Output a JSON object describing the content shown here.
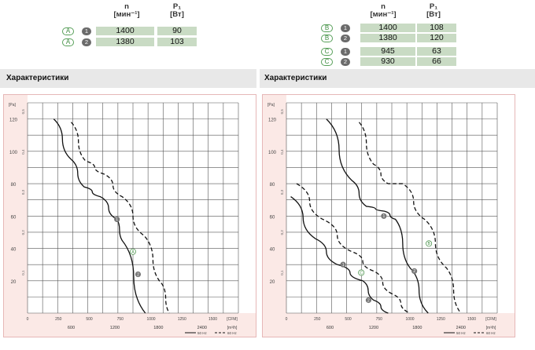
{
  "left_table": {
    "col_n": [
      "n",
      "[мин⁻¹]"
    ],
    "col_p": [
      "P₁",
      "[Вт]"
    ],
    "rows": [
      {
        "curve": "A",
        "point": "1",
        "n": "1400",
        "p": "90"
      },
      {
        "curve": "A",
        "point": "2",
        "n": "1380",
        "p": "103"
      }
    ]
  },
  "right_table": {
    "col_n": [
      "n",
      "[мин⁻¹]"
    ],
    "col_p": [
      "P₁",
      "[Вт]"
    ],
    "rows": [
      {
        "curve": "B",
        "point": "1",
        "n": "1400",
        "p": "108"
      },
      {
        "curve": "B",
        "point": "2",
        "n": "1380",
        "p": "120"
      },
      {
        "curve": "C",
        "point": "1",
        "n": "945",
        "p": "63"
      },
      {
        "curve": "C",
        "point": "2",
        "n": "930",
        "p": "66"
      }
    ]
  },
  "sections": {
    "left_title": "Характеристики",
    "right_title": "Характеристики"
  },
  "colors": {
    "curve": "#111111",
    "grid": "#555555",
    "marker": "#777777",
    "label_green": "#3c8a3e",
    "band": "#e8e8e8",
    "cell": "#c9dbc4"
  },
  "chart_data": [
    {
      "type": "line",
      "title": "",
      "ylabel": "[Pa]",
      "xlabel": "[m³/h]",
      "ylim": [
        0,
        130
      ],
      "xlim": [
        0,
        2900
      ],
      "y_ticks": [
        "20",
        "40",
        "60",
        "80",
        "100",
        "120"
      ],
      "y2_ticks": [
        "0,1",
        "0,2",
        "0,3",
        "0,4",
        "0,5"
      ],
      "x_ticks_top": [
        "0",
        "250",
        "500",
        "750",
        "1000",
        "1250",
        "1500"
      ],
      "x_unit_top": "[CFM]",
      "x_ticks_bottom": [
        "600",
        "1200",
        "1800",
        "2400"
      ],
      "x_unit_bottom": "[m³/h]",
      "legend": [
        "50 Hz",
        "60 Hz"
      ],
      "series": [
        {
          "name": "50 Hz",
          "style": "solid",
          "x": [
            360,
            600,
            780,
            1000,
            1230,
            1300,
            1620
          ],
          "y": [
            120,
            95,
            78,
            72,
            58,
            45,
            0
          ]
        },
        {
          "name": "60 Hz",
          "style": "dashed",
          "x": [
            600,
            800,
            1050,
            1300,
            1600,
            1850,
            1950
          ],
          "y": [
            118,
            94,
            86,
            72,
            48,
            18,
            0
          ]
        }
      ],
      "markers": [
        {
          "label": "1",
          "x": 1230,
          "y": 58
        },
        {
          "label": "2",
          "x": 1520,
          "y": 24
        }
      ],
      "curve_labels": [
        {
          "label": "A",
          "x": 1450,
          "y": 38
        }
      ]
    },
    {
      "type": "line",
      "title": "",
      "ylabel": "[Pa]",
      "xlabel": "[m³/h]",
      "ylim": [
        0,
        130
      ],
      "xlim": [
        0,
        2900
      ],
      "y_ticks": [
        "20",
        "40",
        "60",
        "80",
        "100",
        "120"
      ],
      "y2_ticks": [
        "0,1",
        "0,2",
        "0,3",
        "0,4",
        "0,5"
      ],
      "x_ticks_top": [
        "0",
        "250",
        "500",
        "750",
        "1000",
        "1250",
        "1500"
      ],
      "x_unit_top": "[CFM]",
      "x_ticks_bottom": [
        "600",
        "1200",
        "1800",
        "2400"
      ],
      "x_unit_bottom": "[m³/h]",
      "legend": [
        "50 Hz",
        "60 Hz"
      ],
      "series": [
        {
          "name": "B 50 Hz",
          "style": "solid",
          "x": [
            550,
            900,
            1100,
            1350,
            1500,
            1700,
            1950
          ],
          "y": [
            120,
            82,
            66,
            63,
            58,
            28,
            0
          ]
        },
        {
          "name": "B 60 Hz",
          "style": "dashed",
          "x": [
            1000,
            1200,
            1400,
            1600,
            1900,
            2200,
            2400
          ],
          "y": [
            118,
            92,
            80,
            80,
            58,
            28,
            0
          ]
        },
        {
          "name": "C 50 Hz",
          "style": "solid",
          "x": [
            60,
            400,
            700,
            1050,
            1200,
            1400
          ],
          "y": [
            72,
            46,
            30,
            20,
            8,
            0
          ]
        },
        {
          "name": "C 60 Hz",
          "style": "dashed",
          "x": [
            140,
            500,
            900,
            1200,
            1450,
            1700
          ],
          "y": [
            80,
            58,
            38,
            26,
            12,
            0
          ]
        }
      ],
      "markers": [
        {
          "label": "1",
          "x": 1340,
          "y": 60
        },
        {
          "label": "2",
          "x": 1760,
          "y": 26
        },
        {
          "label": "1",
          "x": 780,
          "y": 30
        },
        {
          "label": "2",
          "x": 1130,
          "y": 8
        }
      ],
      "curve_labels": [
        {
          "label": "B",
          "x": 1960,
          "y": 43
        },
        {
          "label": "C",
          "x": 1030,
          "y": 25
        }
      ]
    }
  ]
}
